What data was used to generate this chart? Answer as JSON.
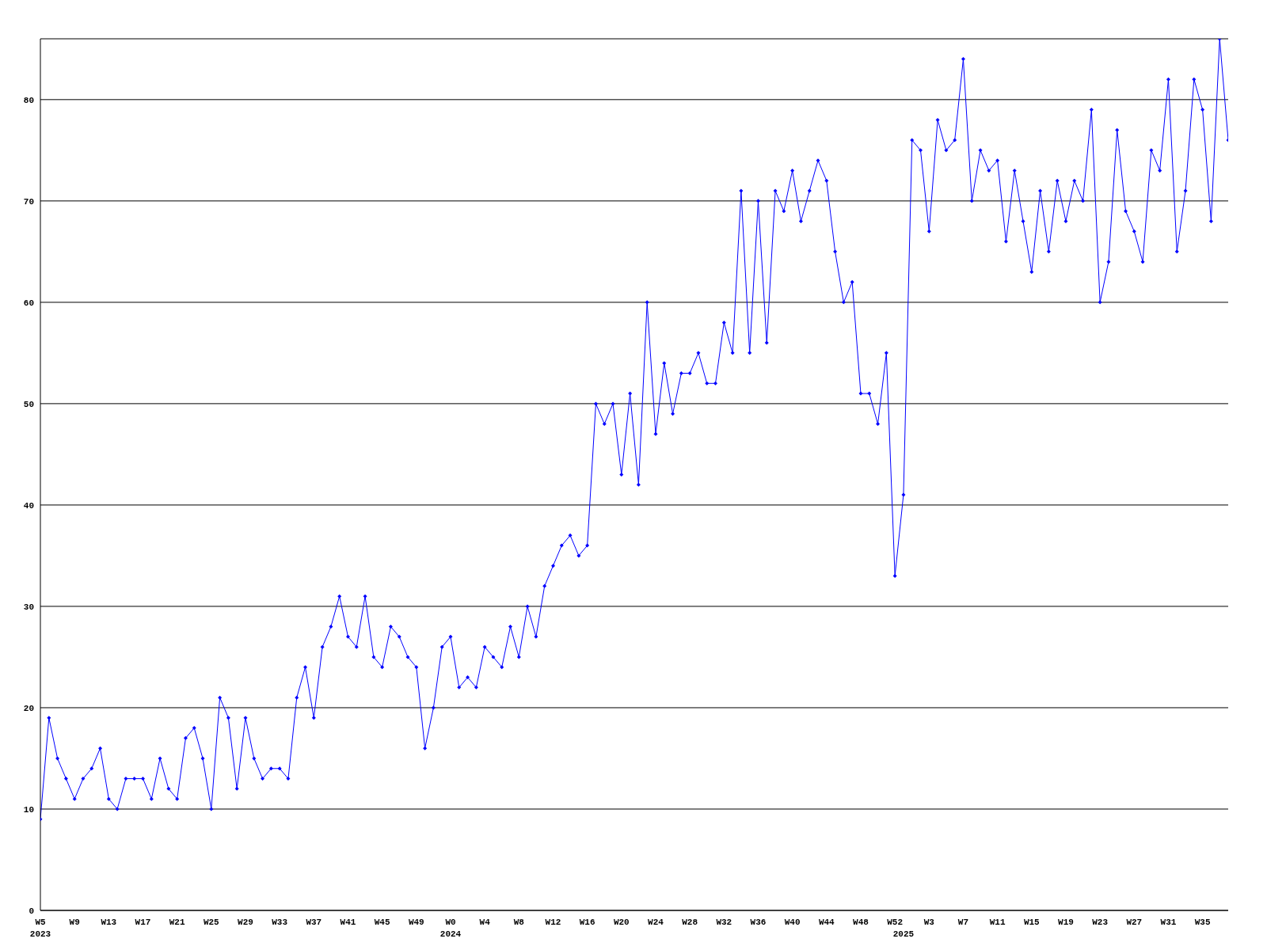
{
  "chart_data": {
    "type": "line",
    "categories": [
      "W5\n2023",
      null,
      null,
      null,
      "W9",
      null,
      null,
      null,
      "W13",
      null,
      null,
      null,
      "W17",
      null,
      null,
      null,
      "W21",
      null,
      null,
      null,
      "W25",
      null,
      null,
      null,
      "W29",
      null,
      null,
      null,
      "W33",
      null,
      null,
      null,
      "W37",
      null,
      null,
      null,
      "W41",
      null,
      null,
      null,
      "W45",
      null,
      null,
      null,
      "W49",
      null,
      null,
      null,
      "W0\n2024",
      null,
      null,
      null,
      "W4",
      null,
      null,
      null,
      "W8",
      null,
      null,
      null,
      "W12",
      null,
      null,
      null,
      "W16",
      null,
      null,
      null,
      "W20",
      null,
      null,
      null,
      "W24",
      null,
      null,
      null,
      "W28",
      null,
      null,
      null,
      "W32",
      null,
      null,
      null,
      "W36",
      null,
      null,
      null,
      "W40",
      null,
      null,
      null,
      "W44",
      null,
      null,
      null,
      "W48",
      null,
      null,
      null,
      "W52",
      "\n2025",
      null,
      null,
      "W3",
      null,
      null,
      null,
      "W7",
      null,
      null,
      null,
      "W11",
      null,
      null,
      null,
      "W15",
      null,
      null,
      null,
      "W19",
      null,
      null,
      null,
      "W23",
      null,
      null,
      null,
      "W27",
      null,
      null,
      null,
      "W31",
      null,
      null,
      null,
      "W35",
      null,
      null,
      null
    ],
    "series": [
      {
        "color": "#0000ff",
        "values": [
          9,
          19,
          15,
          13,
          11,
          13,
          14,
          16,
          11,
          10,
          13,
          13,
          13,
          11,
          15,
          12,
          11,
          17,
          18,
          15,
          10,
          21,
          19,
          12,
          19,
          15,
          13,
          14,
          14,
          13,
          21,
          24,
          19,
          26,
          28,
          31,
          27,
          26,
          31,
          25,
          24,
          28,
          27,
          25,
          24,
          16,
          20,
          26,
          27,
          22,
          23,
          22,
          26,
          25,
          24,
          28,
          25,
          30,
          27,
          32,
          34,
          36,
          37,
          35,
          36,
          50,
          48,
          50,
          43,
          51,
          42,
          60,
          47,
          54,
          49,
          53,
          53,
          55,
          52,
          52,
          58,
          55,
          71,
          55,
          70,
          56,
          71,
          69,
          73,
          68,
          71,
          74,
          72,
          65,
          60,
          62,
          51,
          51,
          48,
          55,
          33,
          41,
          76,
          75,
          67,
          78,
          75,
          76,
          84,
          70,
          75,
          73,
          74,
          66,
          73,
          68,
          63,
          71,
          65,
          72,
          68,
          72,
          70,
          79,
          60,
          64,
          77,
          69,
          67,
          64,
          75,
          73,
          82,
          65,
          71,
          82,
          79,
          68,
          86,
          76
        ]
      }
    ],
    "ylim": [
      0,
      86
    ],
    "yticks": [
      0,
      10,
      20,
      30,
      40,
      50,
      60,
      70,
      80
    ],
    "grid": "y",
    "marker": "diamond",
    "line_style": "solid",
    "legend": false
  }
}
